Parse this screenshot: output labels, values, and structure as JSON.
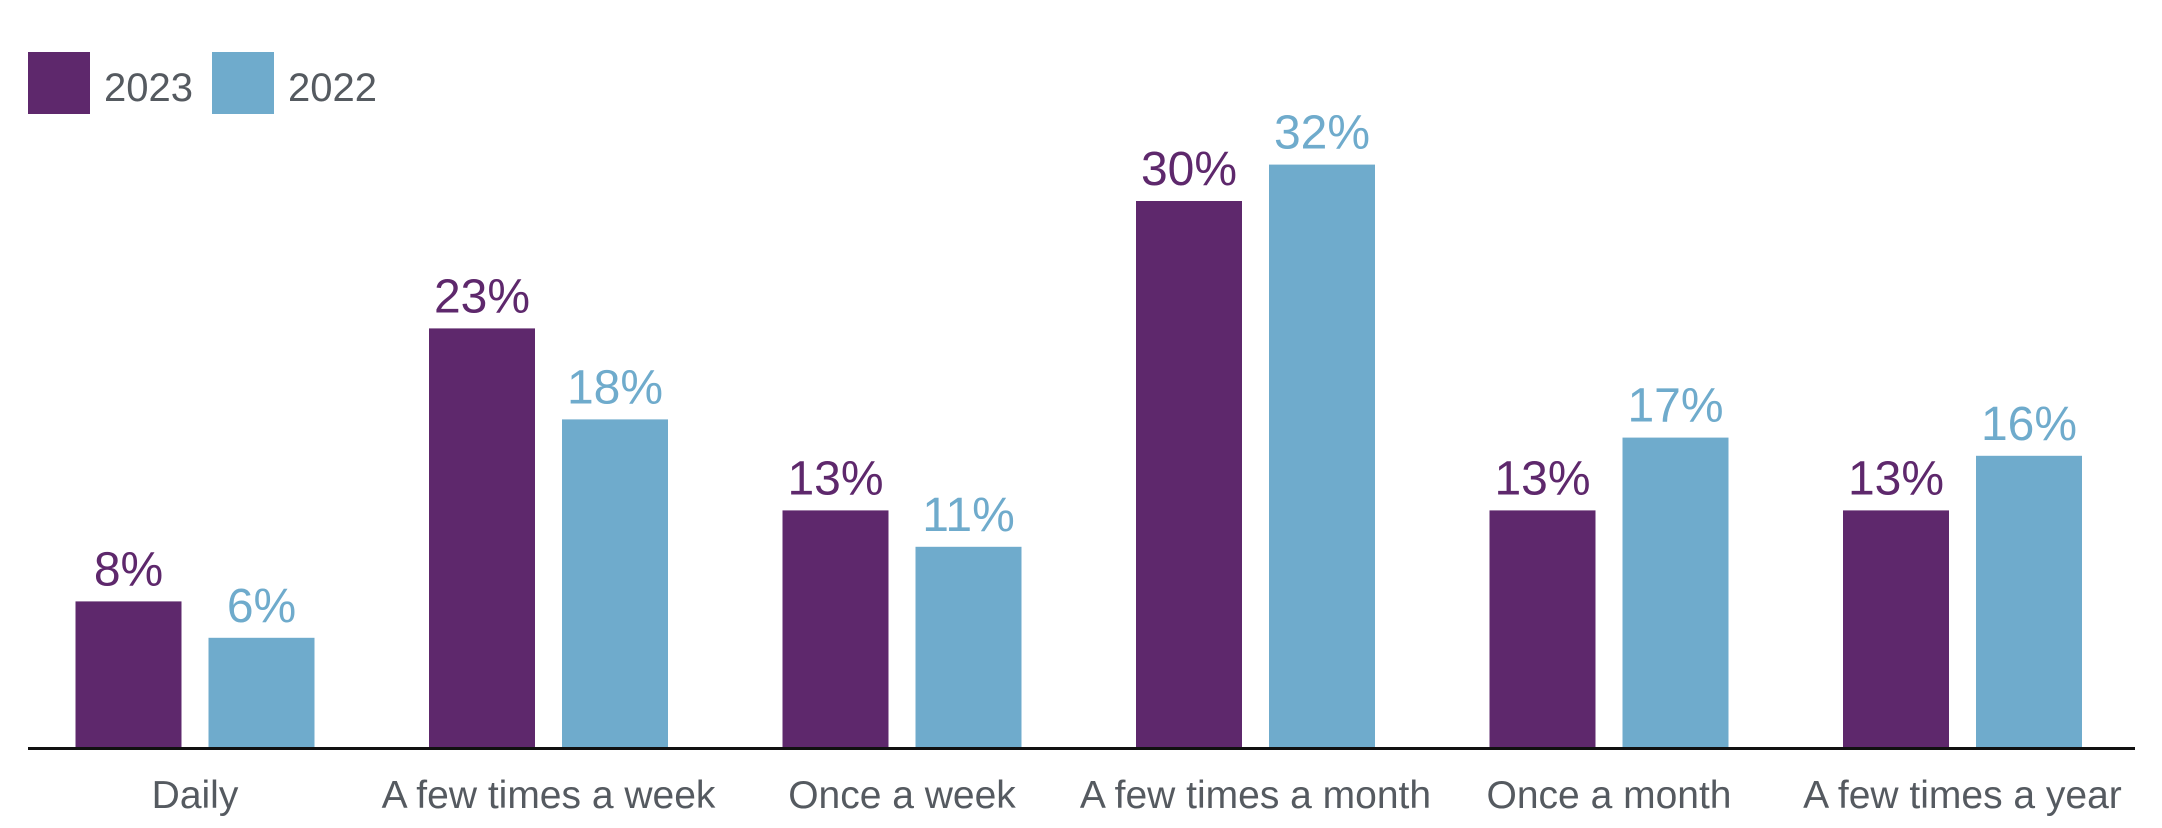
{
  "chart_data": {
    "type": "bar",
    "categories": [
      "Daily",
      "A few times a week",
      "Once a week",
      "A few times a month",
      "Once a month",
      "A few times a year"
    ],
    "series": [
      {
        "name": "2023",
        "values": [
          8,
          23,
          13,
          30,
          13,
          13
        ],
        "color": "#5e286c"
      },
      {
        "name": "2022",
        "values": [
          6,
          18,
          11,
          32,
          17,
          16
        ],
        "color": "#6fabcc"
      }
    ],
    "value_suffix": "%",
    "ylim": [
      0,
      33
    ],
    "grid": false,
    "legend_position": "top-left",
    "axis_color": "#111111"
  }
}
